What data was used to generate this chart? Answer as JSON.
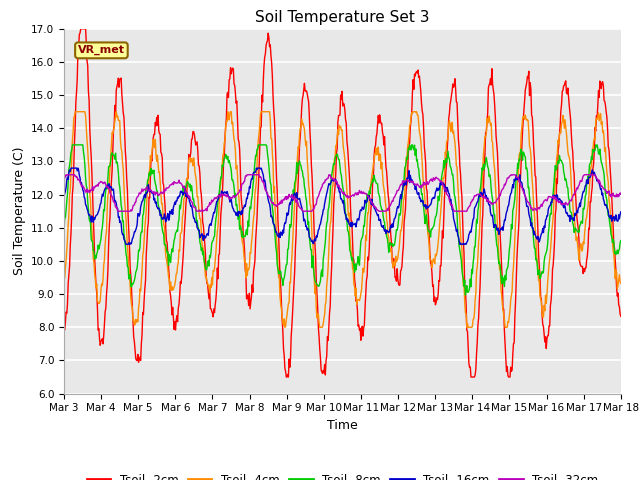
{
  "title": "Soil Temperature Set 3",
  "xlabel": "Time",
  "ylabel": "Soil Temperature (C)",
  "ylim": [
    6.0,
    17.0
  ],
  "yticks": [
    6.0,
    7.0,
    8.0,
    9.0,
    10.0,
    11.0,
    12.0,
    13.0,
    14.0,
    15.0,
    16.0,
    17.0
  ],
  "n_days": 15,
  "n_points": 800,
  "xtick_labels": [
    "Mar 3",
    "Mar 4",
    "Mar 5",
    "Mar 6",
    "Mar 7",
    "Mar 8",
    "Mar 9",
    "Mar 10",
    "Mar 11",
    "Mar 12",
    "Mar 13",
    "Mar 14",
    "Mar 15",
    "Mar 16",
    "Mar 17",
    "Mar 18"
  ],
  "series_colors": [
    "#ff0000",
    "#ff8c00",
    "#00cc00",
    "#0000cc",
    "#bb00bb"
  ],
  "series_labels": [
    "Tsoil -2cm",
    "Tsoil -4cm",
    "Tsoil -8cm",
    "Tsoil -16cm",
    "Tsoil -32cm"
  ],
  "vr_met_label": "VR_met",
  "vr_met_color": "#8b0000",
  "vr_met_bg": "#ffff99",
  "vr_met_border": "#8b6400",
  "fig_bg": "#ffffff",
  "ax_bg": "#e8e8e8",
  "grid_color": "#ffffff",
  "title_fontsize": 11,
  "axis_label_fontsize": 9,
  "tick_fontsize": 7.5,
  "legend_fontsize": 8.5
}
